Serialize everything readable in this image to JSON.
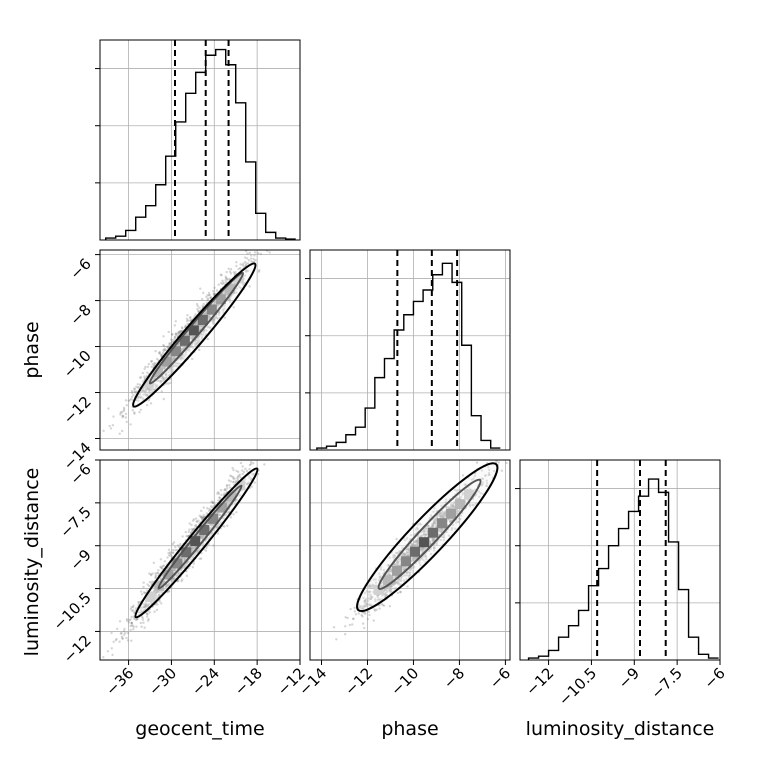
{
  "figure": {
    "variables": [
      "geocent_time",
      "phase",
      "luminosity_distance"
    ],
    "xlabels": [
      "geocent_time",
      "phase",
      "luminosity_distance"
    ],
    "ylabels": [
      "phase",
      "luminosity_distance"
    ]
  },
  "chart_data": [
    {
      "type": "histogram",
      "variable": "geocent_time",
      "xlim": [
        -40,
        -12
      ],
      "bin_edges": [
        -39.2,
        -37.8,
        -36.4,
        -35.0,
        -33.6,
        -32.2,
        -30.8,
        -29.4,
        -28.0,
        -26.6,
        -25.2,
        -23.8,
        -22.4,
        -21.0,
        -19.6,
        -18.2,
        -16.8,
        -15.4,
        -14.0,
        -12.6
      ],
      "counts": [
        0.01,
        0.02,
        0.05,
        0.12,
        0.18,
        0.29,
        0.44,
        0.62,
        0.77,
        0.88,
        0.97,
        1.0,
        0.92,
        0.72,
        0.41,
        0.14,
        0.04,
        0.01,
        0.005
      ],
      "quantile_lines": [
        -29.5,
        -25.2,
        -22.0
      ],
      "ytick_fractions": [
        0.3,
        0.6,
        0.9
      ],
      "grid": true
    },
    {
      "type": "histogram",
      "variable": "phase",
      "xlim": [
        -14.5,
        -5.8
      ],
      "bin_edges": [
        -14.2,
        -13.78,
        -13.36,
        -12.94,
        -12.52,
        -12.1,
        -11.68,
        -11.26,
        -10.84,
        -10.42,
        -10.0,
        -9.58,
        -9.16,
        -8.74,
        -8.32,
        -7.9,
        -7.48,
        -7.06,
        -6.64,
        -6.22
      ],
      "counts": [
        0.01,
        0.02,
        0.04,
        0.08,
        0.12,
        0.22,
        0.38,
        0.48,
        0.63,
        0.71,
        0.78,
        0.84,
        0.92,
        0.98,
        0.88,
        0.55,
        0.18,
        0.05,
        0.01
      ],
      "quantile_lines": [
        -10.7,
        -9.2,
        -8.1
      ],
      "ytick_fractions": [
        0.3,
        0.6,
        0.9
      ],
      "ticks": [
        -14,
        -12,
        -10,
        -8,
        -6
      ],
      "grid": true
    },
    {
      "type": "histogram",
      "variable": "luminosity_distance",
      "xlim": [
        -13.0,
        -6.0
      ],
      "bin_edges": [
        -12.7,
        -12.35,
        -12.0,
        -11.65,
        -11.3,
        -10.95,
        -10.6,
        -10.25,
        -9.9,
        -9.55,
        -9.2,
        -8.85,
        -8.5,
        -8.15,
        -7.8,
        -7.45,
        -7.1,
        -6.75,
        -6.4,
        -6.05
      ],
      "counts": [
        0.01,
        0.02,
        0.05,
        0.12,
        0.18,
        0.26,
        0.39,
        0.48,
        0.6,
        0.69,
        0.78,
        0.86,
        0.95,
        0.88,
        0.62,
        0.37,
        0.12,
        0.03,
        0.01
      ],
      "quantile_lines": [
        -10.3,
        -8.8,
        -7.9
      ],
      "ytick_fractions": [
        0.3,
        0.6,
        0.9
      ],
      "ticks": [
        -12.0,
        -10.5,
        -9.0,
        -7.5,
        -6.0
      ],
      "grid": true
    },
    {
      "type": "scatter",
      "x_variable": "geocent_time",
      "y_variable": "phase",
      "xlim": [
        -40,
        -12
      ],
      "ylim": [
        -14.5,
        -5.8
      ],
      "xticks": [
        -36,
        -30,
        -24,
        -18,
        -12
      ],
      "yticks": [
        -14,
        -12,
        -10,
        -8,
        -6
      ],
      "trend": {
        "x0": -27.7,
        "y0": -9.6,
        "slope": 0.36
      },
      "contours": [
        {
          "level": "inner",
          "center": [
            -26.5,
            -9.2
          ],
          "half_length": [
            6.5,
            2.4
          ],
          "half_width": 0.35
        },
        {
          "level": "outer",
          "center": [
            -26.8,
            -9.5
          ],
          "half_length": [
            8.5,
            3.1
          ],
          "half_width": 0.65
        }
      ],
      "grid": true
    },
    {
      "type": "scatter",
      "x_variable": "geocent_time",
      "y_variable": "luminosity_distance",
      "xlim": [
        -40,
        -12
      ],
      "ylim": [
        -13.0,
        -6.0
      ],
      "xticks": [
        -36,
        -30,
        -24,
        -18,
        -12
      ],
      "yticks": [
        -12.0,
        -10.5,
        -9.0,
        -7.5,
        -6.0
      ],
      "trend": {
        "x0": -27.5,
        "y0": -9.1,
        "slope": 0.31
      },
      "contours": [
        {
          "level": "inner",
          "center": [
            -26.0,
            -8.7
          ],
          "half_length": [
            5.8,
            1.8
          ],
          "half_width": 0.3
        },
        {
          "level": "outer",
          "center": [
            -26.5,
            -8.9
          ],
          "half_length": [
            8.5,
            2.6
          ],
          "half_width": 0.55
        }
      ],
      "grid": true
    },
    {
      "type": "scatter",
      "x_variable": "phase",
      "y_variable": "luminosity_distance",
      "xlim": [
        -14.5,
        -5.8
      ],
      "ylim": [
        -13.0,
        -6.0
      ],
      "xticks": [
        -14,
        -12,
        -10,
        -8,
        -6
      ],
      "yticks": [
        -12.0,
        -10.5,
        -9.0,
        -7.5,
        -6.0
      ],
      "trend": {
        "x0": -9.8,
        "y0": -9.1,
        "slope": 0.85
      },
      "contours": [
        {
          "level": "inner",
          "center": [
            -9.3,
            -8.6
          ],
          "half_length": [
            2.2,
            1.9
          ],
          "half_width": 0.18
        },
        {
          "level": "outer",
          "center": [
            -9.4,
            -8.7
          ],
          "half_length": [
            3.0,
            2.55
          ],
          "half_width": 0.35
        }
      ],
      "grid": true
    }
  ]
}
